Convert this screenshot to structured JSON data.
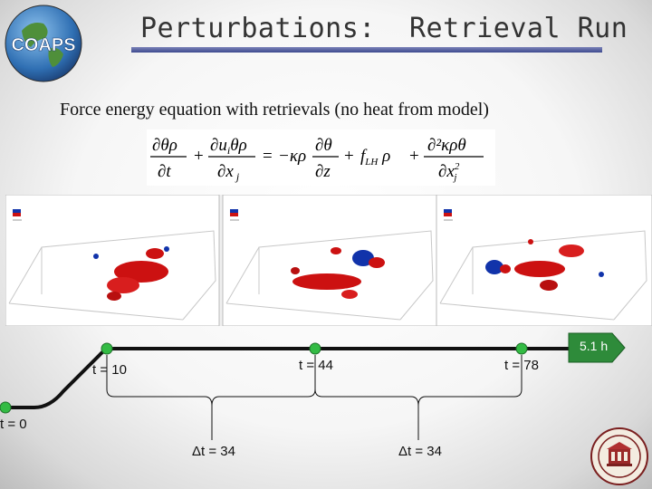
{
  "header": {
    "logo_text": "COAPS",
    "title": "Perturbations:  Retrieval Run"
  },
  "subtitle": "Force energy equation with retrievals (no heat from model)",
  "equation": {
    "lhs1_num": "∂θρ",
    "lhs1_den": "∂t",
    "lhs2_num": "∂u_iθρ",
    "lhs2_den": "∂x_j",
    "rhs1_num": "∂θ",
    "rhs1_den": "∂z",
    "rhs2": "f_LH ρ",
    "rhs3_num": "∂²κρθ",
    "rhs3_den": "∂x_j²"
  },
  "timeline": {
    "labels": {
      "t0": "t = 0",
      "t10": "t = 10",
      "t44": "t = 44",
      "t78": "t = 78",
      "dt1": "Δt = 34",
      "dt2": "Δt = 34"
    },
    "arrow_label": "5.1 h",
    "colors": {
      "node": "#33bb44",
      "line": "#111111",
      "arrow": "#2e8b3a"
    }
  },
  "colors": {
    "accent": "#3d4a8f",
    "perturbation_red": "#cc1111",
    "perturbation_blue": "#1133aa"
  }
}
